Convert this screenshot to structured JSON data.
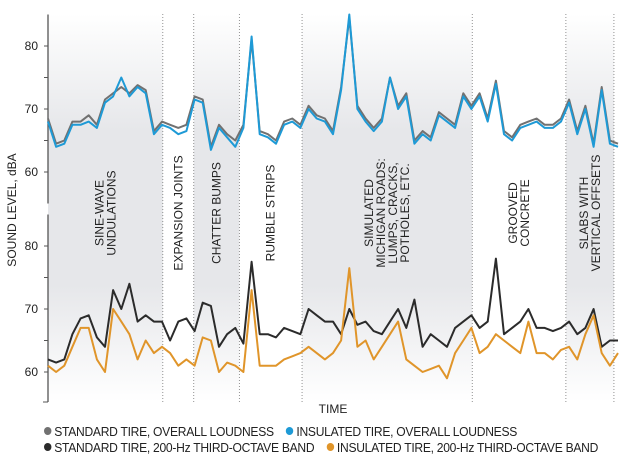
{
  "chart_data": {
    "type": "line",
    "title": "",
    "xlabel": "TIME",
    "ylabel": "SOUND LEVEL, dBA",
    "xlim": [
      0,
      70
    ],
    "panels": [
      {
        "name": "overall-loudness",
        "ylim": [
          55,
          85
        ],
        "yticks": [
          "60",
          "70",
          "80"
        ],
        "series": [
          {
            "name": "STANDARD TIRE, OVERALL LOUDNESS",
            "color": "#717171",
            "values": [
              68.5,
              64.5,
              65,
              68,
              68,
              69,
              67.5,
              71.5,
              72.5,
              73.5,
              72.5,
              73.8,
              73,
              66.5,
              68,
              67.5,
              67,
              67.5,
              72,
              71.5,
              64,
              67.5,
              66,
              65,
              67.5,
              81,
              66.5,
              66,
              65,
              68,
              68.5,
              67.5,
              70.5,
              69,
              68.5,
              66.5,
              73.5,
              84.5,
              70.5,
              68.5,
              67,
              68.5,
              75,
              70.5,
              72.5,
              65,
              66.5,
              65.5,
              69.5,
              68.5,
              67.5,
              72.5,
              70.5,
              72.5,
              68.5,
              74.5,
              66.5,
              65.5,
              67.5,
              68,
              68.5,
              67.5,
              67.5,
              68.5,
              71.5,
              66.5,
              70.5,
              64.5,
              73.5,
              65,
              64.5
            ]
          },
          {
            "name": "INSULATED TIRE, OVERALL LOUDNESS",
            "color": "#1e9ad6",
            "values": [
              68,
              64,
              64.5,
              67.5,
              67.5,
              68,
              67,
              71,
              72,
              75,
              72,
              73.5,
              72.5,
              66,
              67.5,
              67,
              66,
              66.5,
              71.5,
              71,
              63.5,
              67,
              65.5,
              64,
              67,
              81.5,
              66,
              65.5,
              64.5,
              67.5,
              68,
              67,
              70,
              68.5,
              68,
              66,
              73,
              85,
              70,
              68,
              66.5,
              68,
              75,
              70,
              72,
              64.5,
              66,
              65,
              69,
              68,
              67,
              72,
              70,
              72,
              68,
              74,
              66,
              65,
              67,
              67.5,
              68,
              67,
              67,
              68,
              71,
              66,
              70,
              64,
              73,
              64.5,
              64
            ]
          }
        ]
      },
      {
        "name": "200-hz-third-octave-band",
        "ylim": [
          55,
          85
        ],
        "yticks": [
          "60",
          "70",
          "80"
        ],
        "series": [
          {
            "name": "STANDARD TIRE, 200-Hz THIRD-OCTAVE BAND",
            "color": "#2b2b2b",
            "values": [
              62,
              61.5,
              62,
              66,
              68.5,
              69,
              65.5,
              64,
              73,
              70,
              74,
              68,
              69,
              68,
              68,
              65,
              68,
              68.5,
              66.5,
              71,
              70.5,
              64,
              66,
              67,
              64.5,
              77.5,
              66,
              66,
              65.5,
              67,
              66.5,
              66,
              70,
              69,
              68,
              68,
              66,
              70,
              67.5,
              68,
              66.5,
              66,
              68,
              70,
              67,
              71.5,
              64,
              66,
              65,
              64,
              67,
              68,
              69,
              67,
              68,
              78,
              66,
              67,
              68,
              70,
              67,
              67,
              66.5,
              67,
              68,
              66,
              67,
              70,
              64,
              65,
              65
            ]
          },
          {
            "name": "INSULATED TIRE, 200-Hz THIRD-OCTAVE BAND",
            "color": "#e0952a",
            "values": [
              61,
              60,
              61,
              64,
              67,
              67,
              62,
              60,
              70,
              68,
              66,
              62,
              65,
              63,
              64,
              63,
              61,
              62,
              61,
              65.5,
              65,
              60,
              61.5,
              61,
              60,
              73,
              61,
              61,
              61,
              62,
              62.5,
              63,
              64,
              63,
              62,
              63,
              65,
              76.5,
              64,
              65,
              62,
              64,
              66,
              68,
              62,
              61,
              60,
              60.5,
              61,
              59,
              63,
              65,
              67,
              63,
              64,
              66,
              65,
              64,
              63,
              68,
              63,
              63,
              62,
              63.5,
              64,
              62,
              66,
              69,
              63,
              61,
              63
            ]
          }
        ]
      }
    ],
    "sections": [
      {
        "label": [
          "SINE-WAVE",
          "UNDULATIONS"
        ],
        "start": 0,
        "end": 14.1,
        "shaded": true
      },
      {
        "label": [
          "EXPANSION JOINTS"
        ],
        "start": 14.1,
        "end": 17.9,
        "shaded": false
      },
      {
        "label": [
          "CHATTER BUMPS"
        ],
        "start": 17.9,
        "end": 23.5,
        "shaded": true
      },
      {
        "label": [
          "RUMBLE STRIPS"
        ],
        "start": 23.5,
        "end": 31.2,
        "shaded": false
      },
      {
        "label": [
          "SIMULATED",
          "MICHIGAN ROADS:",
          "LUMPS, CRACKS,",
          "POTHOLES, ETC."
        ],
        "start": 31.2,
        "end": 52.1,
        "shaded": true
      },
      {
        "label": [
          "GROOVED",
          "CONCRETE"
        ],
        "start": 52.1,
        "end": 63.6,
        "shaded": false
      },
      {
        "label": [
          "SLABS WITH",
          "VERTICAL OFFSETS"
        ],
        "start": 63.6,
        "end": 69.5,
        "shaded": true
      }
    ],
    "legend": {
      "placement": "bottom",
      "items": [
        {
          "label": "STANDARD TIRE, OVERALL LOUDNESS",
          "color": "#717171"
        },
        {
          "label": "INSULATED TIRE, OVERALL LOUDNESS",
          "color": "#1e9ad6"
        },
        {
          "label": "STANDARD TIRE, 200-Hz THIRD-OCTAVE BAND",
          "color": "#2b2b2b"
        },
        {
          "label": "INSULATED TIRE, 200-Hz THIRD-OCTAVE BAND",
          "color": "#e0952a"
        }
      ]
    }
  }
}
